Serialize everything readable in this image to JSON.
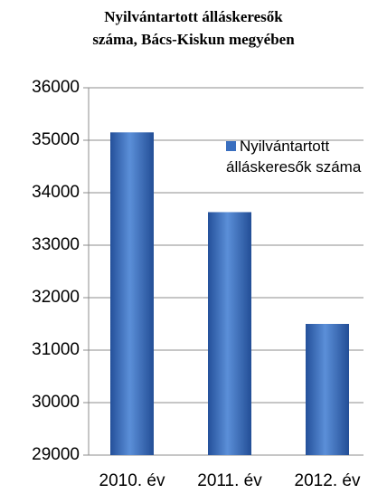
{
  "chart_data": {
    "type": "bar",
    "title": "Nyilvántartott álláskeresők\nszáma, Bács-Kiskun megyében",
    "categories": [
      "2010. év",
      "2011. év",
      "2012. év"
    ],
    "series": [
      {
        "name": "Nyilvántartott álláskeresők száma",
        "color": "#3a6fbf",
        "values": [
          35150,
          33630,
          31500
        ]
      }
    ],
    "ylim": [
      29000,
      36000
    ],
    "yticks": [
      29000,
      30000,
      31000,
      32000,
      33000,
      34000,
      35000,
      36000
    ],
    "grid": true,
    "legend": "upper right"
  }
}
